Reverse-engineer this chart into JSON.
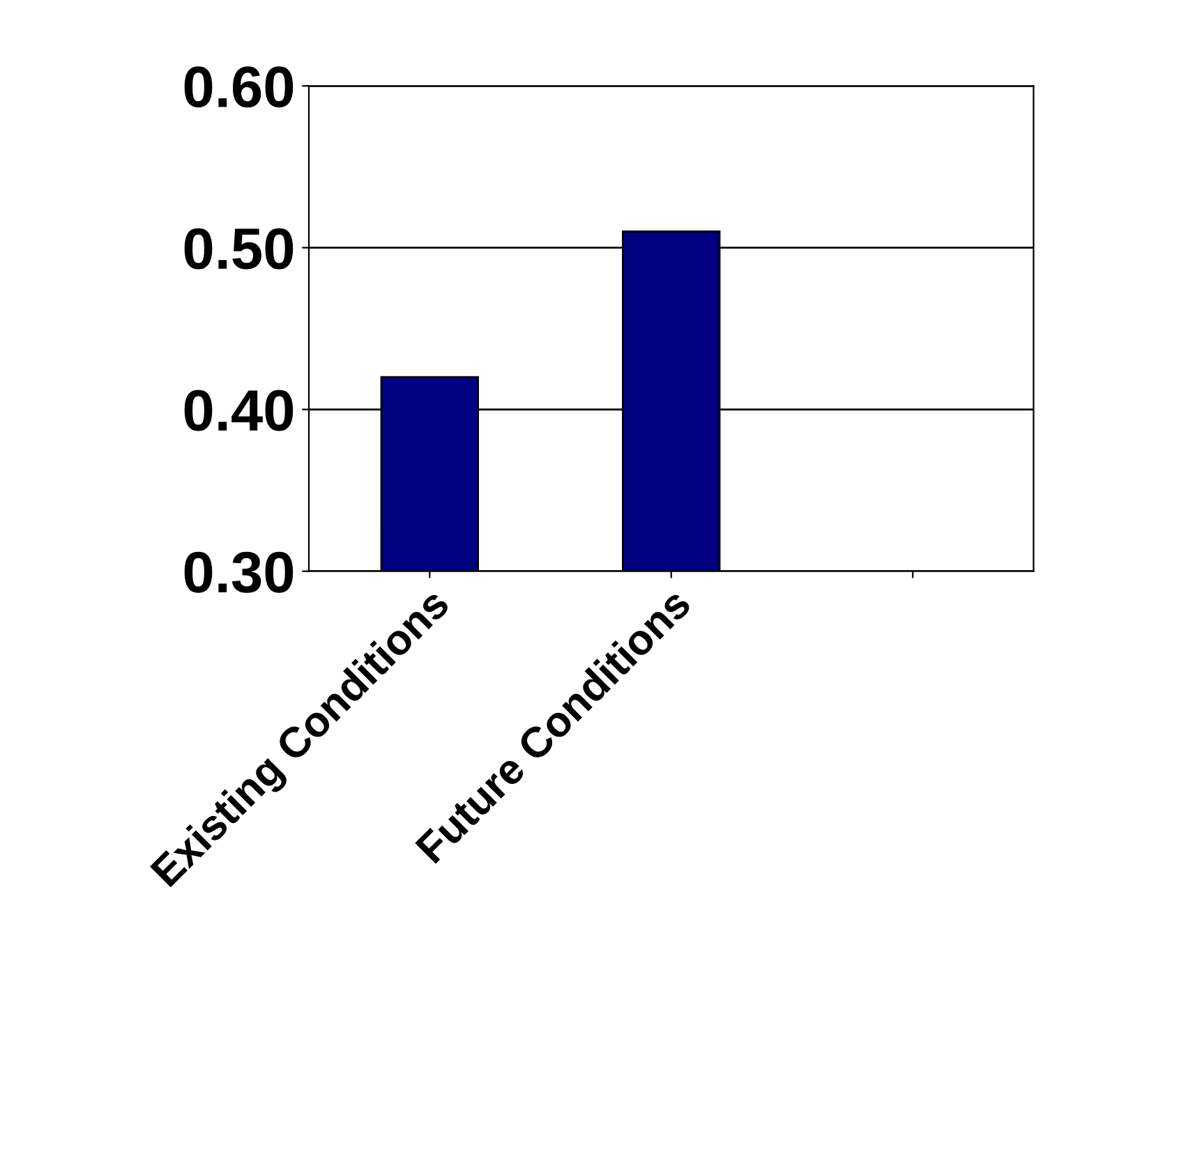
{
  "chart_data": {
    "type": "bar",
    "categories": [
      "Existing Conditions",
      "Future Conditions",
      null
    ],
    "values": [
      0.42,
      0.51,
      null
    ],
    "color": "#000080",
    "ylim": [
      0.3,
      0.6
    ],
    "yticks": [
      {
        "value": 0.3,
        "label": "0.30"
      },
      {
        "value": 0.4,
        "label": "0.40"
      },
      {
        "value": 0.5,
        "label": "0.50"
      },
      {
        "value": 0.6,
        "label": "0.60"
      }
    ],
    "grid": "y"
  }
}
